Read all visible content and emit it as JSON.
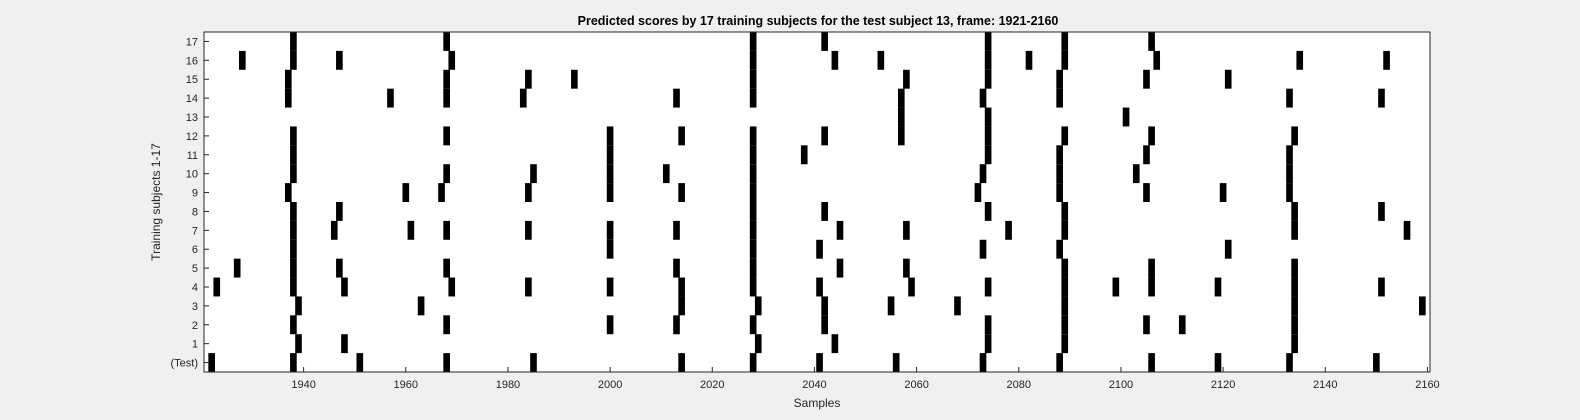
{
  "chart_data": {
    "type": "raster",
    "title": "Predicted scores by 17 training subjects for the test subject 13, frame: 1921-2160",
    "xlabel": "Samples",
    "ylabel": "Training subjects 1-17",
    "xlim": [
      1921,
      2160
    ],
    "x_ticks": [
      1940,
      1960,
      1980,
      2000,
      2020,
      2040,
      2060,
      2080,
      2100,
      2120,
      2140,
      2160
    ],
    "y_ticks": [
      "(Test)",
      "1",
      "2",
      "3",
      "4",
      "5",
      "6",
      "7",
      "8",
      "9",
      "10",
      "11",
      "12",
      "13",
      "14",
      "15",
      "16",
      "17"
    ],
    "grid": false,
    "rows": [
      {
        "label": "(Test)",
        "spikes": [
          1922,
          1938,
          1951,
          1968,
          1985,
          2014,
          2028,
          2041,
          2056,
          2073,
          2088,
          2106,
          2119,
          2133,
          2150
        ]
      },
      {
        "label": "1",
        "spikes": [
          1939,
          1948,
          2029,
          2044,
          2074,
          2089,
          2134
        ]
      },
      {
        "label": "2",
        "spikes": [
          1938,
          1968,
          2000,
          2013,
          2028,
          2042,
          2074,
          2089,
          2105,
          2112,
          2134
        ]
      },
      {
        "label": "3",
        "spikes": [
          1939,
          1963,
          2014,
          2029,
          2042,
          2055,
          2068,
          2089,
          2134,
          2159
        ]
      },
      {
        "label": "4",
        "spikes": [
          1923,
          1938,
          1948,
          1969,
          1984,
          2000,
          2014,
          2028,
          2041,
          2059,
          2074,
          2089,
          2099,
          2106,
          2119,
          2134,
          2151
        ]
      },
      {
        "label": "5",
        "spikes": [
          1927,
          1938,
          1947,
          1968,
          2013,
          2028,
          2045,
          2058,
          2089,
          2106,
          2134
        ]
      },
      {
        "label": "6",
        "spikes": [
          1938,
          2000,
          2028,
          2041,
          2073,
          2088,
          2121
        ]
      },
      {
        "label": "7",
        "spikes": [
          1938,
          1946,
          1961,
          1968,
          1984,
          2000,
          2013,
          2028,
          2045,
          2058,
          2078,
          2089,
          2134,
          2156
        ]
      },
      {
        "label": "8",
        "spikes": [
          1938,
          1947,
          2028,
          2042,
          2074,
          2089,
          2134,
          2151
        ]
      },
      {
        "label": "9",
        "spikes": [
          1937,
          1960,
          1967,
          1984,
          2000,
          2014,
          2028,
          2072,
          2088,
          2105,
          2120,
          2133
        ]
      },
      {
        "label": "10",
        "spikes": [
          1938,
          1968,
          1985,
          2000,
          2011,
          2028,
          2073,
          2088,
          2103,
          2133
        ]
      },
      {
        "label": "11",
        "spikes": [
          1938,
          2000,
          2028,
          2038,
          2074,
          2088,
          2105,
          2133
        ]
      },
      {
        "label": "12",
        "spikes": [
          1938,
          1968,
          2000,
          2014,
          2028,
          2042,
          2057,
          2074,
          2089,
          2106,
          2134
        ]
      },
      {
        "label": "13",
        "spikes": [
          2057,
          2074,
          2101
        ]
      },
      {
        "label": "14",
        "spikes": [
          1937,
          1957,
          1968,
          1983,
          2013,
          2028,
          2057,
          2073,
          2088,
          2133,
          2151
        ]
      },
      {
        "label": "15",
        "spikes": [
          1937,
          1968,
          1984,
          1993,
          2028,
          2058,
          2074,
          2088,
          2105,
          2121
        ]
      },
      {
        "label": "16",
        "spikes": [
          1928,
          1938,
          1947,
          1969,
          2028,
          2044,
          2053,
          2074,
          2082,
          2089,
          2107,
          2135,
          2152
        ]
      },
      {
        "label": "17",
        "spikes": [
          1938,
          1968,
          2028,
          2042,
          2074,
          2089,
          2106
        ]
      }
    ]
  }
}
